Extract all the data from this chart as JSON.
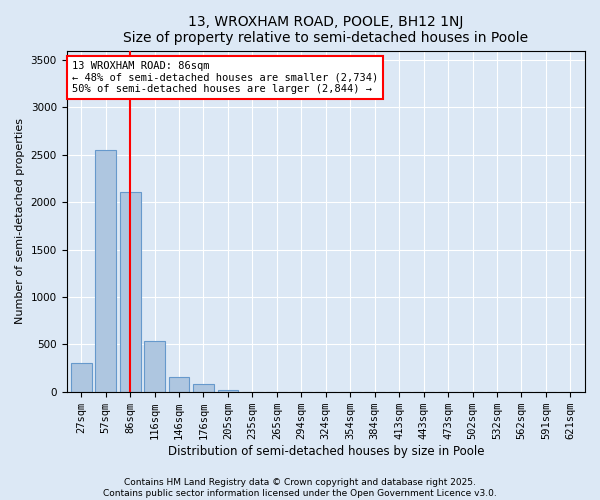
{
  "title1": "13, WROXHAM ROAD, POOLE, BH12 1NJ",
  "title2": "Size of property relative to semi-detached houses in Poole",
  "xlabel": "Distribution of semi-detached houses by size in Poole",
  "ylabel": "Number of semi-detached properties",
  "categories": [
    "27sqm",
    "57sqm",
    "86sqm",
    "116sqm",
    "146sqm",
    "176sqm",
    "205sqm",
    "235sqm",
    "265sqm",
    "294sqm",
    "324sqm",
    "354sqm",
    "384sqm",
    "413sqm",
    "443sqm",
    "473sqm",
    "502sqm",
    "532sqm",
    "562sqm",
    "591sqm",
    "621sqm"
  ],
  "values": [
    305,
    2550,
    2110,
    530,
    155,
    80,
    20,
    0,
    0,
    0,
    0,
    0,
    0,
    0,
    0,
    0,
    0,
    0,
    0,
    0,
    0
  ],
  "bar_color": "#aec6e0",
  "bar_edge_color": "#6699cc",
  "red_line_index": 2,
  "ylim": [
    0,
    3600
  ],
  "yticks": [
    0,
    500,
    1000,
    1500,
    2000,
    2500,
    3000,
    3500
  ],
  "annotation_title": "13 WROXHAM ROAD: 86sqm",
  "annotation_line1": "← 48% of semi-detached houses are smaller (2,734)",
  "annotation_line2": "50% of semi-detached houses are larger (2,844) →",
  "footer1": "Contains HM Land Registry data © Crown copyright and database right 2025.",
  "footer2": "Contains public sector information licensed under the Open Government Licence v3.0.",
  "bg_color": "#dce8f5",
  "plot_bg_color": "#dce8f5",
  "title1_fontsize": 10,
  "title2_fontsize": 9,
  "xlabel_fontsize": 8.5,
  "ylabel_fontsize": 8,
  "tick_fontsize": 7.5,
  "annotation_fontsize": 7.5,
  "footer_fontsize": 6.5
}
